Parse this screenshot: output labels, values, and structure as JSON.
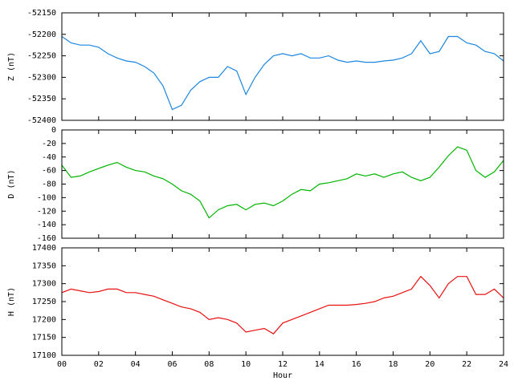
{
  "chart_data": [
    {
      "type": "line",
      "ylabel": "Z (nT)",
      "x": [
        0,
        0.5,
        1,
        1.5,
        2,
        2.5,
        3,
        3.5,
        4,
        4.5,
        5,
        5.5,
        6,
        6.5,
        7,
        7.5,
        8,
        8.5,
        9,
        9.5,
        10,
        10.5,
        11,
        11.5,
        12,
        12.5,
        13,
        13.5,
        14,
        14.5,
        15,
        15.5,
        16,
        16.5,
        17,
        17.5,
        18,
        18.5,
        19,
        19.5,
        20,
        20.5,
        21,
        21.5,
        22,
        22.5,
        23,
        23.5,
        24
      ],
      "series": [
        {
          "name": "Z",
          "color": "#1c86e0",
          "values": [
            -52205,
            -52220,
            -52225,
            -52225,
            -52230,
            -52245,
            -52255,
            -52262,
            -52265,
            -52275,
            -52290,
            -52320,
            -52375,
            -52365,
            -52330,
            -52310,
            -52300,
            -52300,
            -52275,
            -52285,
            -52340,
            -52300,
            -52270,
            -52250,
            -52245,
            -52250,
            -52245,
            -52255,
            -52255,
            -52250,
            -52260,
            -52265,
            -52262,
            -52265,
            -52265,
            -52262,
            -52260,
            -52255,
            -52245,
            -52215,
            -52245,
            -52240,
            -52205,
            -52205,
            -52220,
            -52225,
            -52240,
            -52245,
            -52262
          ]
        }
      ],
      "xlim": [
        0,
        24
      ],
      "xticks": [
        0,
        2,
        4,
        6,
        8,
        10,
        12,
        14,
        16,
        18,
        20,
        22,
        24
      ],
      "ylim": [
        -52400,
        -52150
      ],
      "yticks": [
        -52400,
        -52350,
        -52300,
        -52250,
        -52200,
        -52150
      ]
    },
    {
      "type": "line",
      "ylabel": "D (nT)",
      "x": [
        0,
        0.5,
        1,
        1.5,
        2,
        2.5,
        3,
        3.5,
        4,
        4.5,
        5,
        5.5,
        6,
        6.5,
        7,
        7.5,
        8,
        8.5,
        9,
        9.5,
        10,
        10.5,
        11,
        11.5,
        12,
        12.5,
        13,
        13.5,
        14,
        14.5,
        15,
        15.5,
        16,
        16.5,
        17,
        17.5,
        18,
        18.5,
        19,
        19.5,
        20,
        20.5,
        21,
        21.5,
        22,
        22.5,
        23,
        23.5,
        24
      ],
      "series": [
        {
          "name": "D",
          "color": "#00b400",
          "values": [
            -52,
            -70,
            -68,
            -62,
            -57,
            -52,
            -48,
            -55,
            -60,
            -62,
            -68,
            -72,
            -80,
            -90,
            -95,
            -105,
            -130,
            -118,
            -112,
            -110,
            -118,
            -110,
            -108,
            -112,
            -105,
            -95,
            -88,
            -90,
            -80,
            -78,
            -75,
            -72,
            -65,
            -68,
            -65,
            -70,
            -65,
            -62,
            -70,
            -75,
            -70,
            -55,
            -38,
            -25,
            -30,
            -60,
            -70,
            -62,
            -45
          ]
        }
      ],
      "xlim": [
        0,
        24
      ],
      "xticks": [
        0,
        2,
        4,
        6,
        8,
        10,
        12,
        14,
        16,
        18,
        20,
        22,
        24
      ],
      "ylim": [
        -160,
        0
      ],
      "yticks": [
        -160,
        -140,
        -120,
        -100,
        -80,
        -60,
        -40,
        -20,
        0
      ]
    },
    {
      "type": "line",
      "ylabel": "H (nT)",
      "xlabel": "Hour",
      "x": [
        0,
        0.5,
        1,
        1.5,
        2,
        2.5,
        3,
        3.5,
        4,
        4.5,
        5,
        5.5,
        6,
        6.5,
        7,
        7.5,
        8,
        8.5,
        9,
        9.5,
        10,
        10.5,
        11,
        11.5,
        12,
        12.5,
        13,
        13.5,
        14,
        14.5,
        15,
        15.5,
        16,
        16.5,
        17,
        17.5,
        18,
        18.5,
        19,
        19.5,
        20,
        20.5,
        21,
        21.5,
        22,
        22.5,
        23,
        23.5,
        24
      ],
      "series": [
        {
          "name": "H",
          "color": "#e81010",
          "values": [
            17275,
            17285,
            17280,
            17275,
            17278,
            17285,
            17285,
            17275,
            17275,
            17270,
            17265,
            17255,
            17245,
            17235,
            17230,
            17220,
            17200,
            17205,
            17200,
            17190,
            17165,
            17170,
            17175,
            17160,
            17190,
            17200,
            17210,
            17220,
            17230,
            17240,
            17240,
            17240,
            17242,
            17245,
            17250,
            17260,
            17265,
            17275,
            17285,
            17320,
            17295,
            17260,
            17300,
            17320,
            17320,
            17270,
            17270,
            17285,
            17260
          ]
        }
      ],
      "xlim": [
        0,
        24
      ],
      "xticks": [
        {
          "value": 0,
          "label": "00"
        },
        {
          "value": 2,
          "label": "02"
        },
        {
          "value": 4,
          "label": "04"
        },
        {
          "value": 6,
          "label": "06"
        },
        {
          "value": 8,
          "label": "08"
        },
        {
          "value": 10,
          "label": "10"
        },
        {
          "value": 12,
          "label": "12"
        },
        {
          "value": 14,
          "label": "14"
        },
        {
          "value": 16,
          "label": "16"
        },
        {
          "value": 18,
          "label": "18"
        },
        {
          "value": 20,
          "label": "20"
        },
        {
          "value": 22,
          "label": "22"
        },
        {
          "value": 24,
          "label": "24"
        }
      ],
      "ylim": [
        17100,
        17400
      ],
      "yticks": [
        17100,
        17150,
        17200,
        17250,
        17300,
        17350,
        17400
      ]
    }
  ]
}
